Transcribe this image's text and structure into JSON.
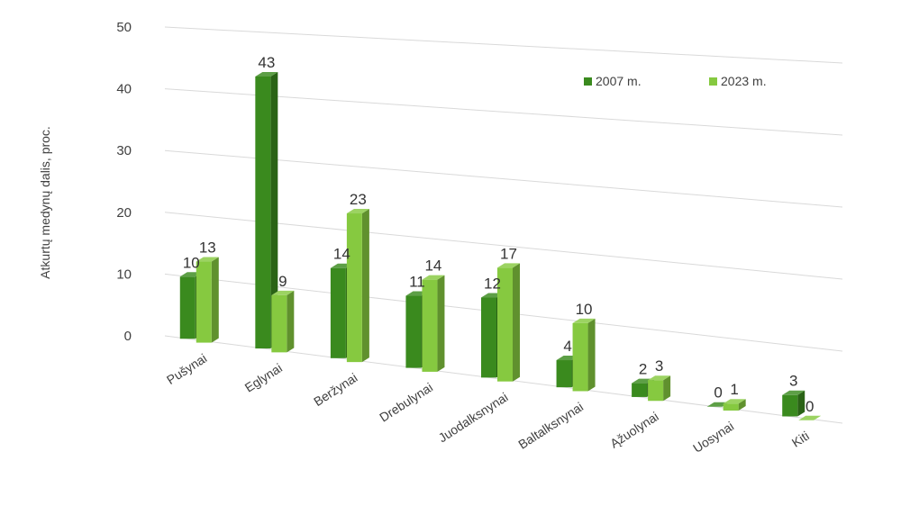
{
  "chart_data": {
    "type": "bar",
    "style": "3d-clustered-column",
    "ylabel": "Atkurtų medynų dalis, proc.",
    "xlabel": "",
    "ylim": [
      0,
      50
    ],
    "yticks": [
      0,
      10,
      20,
      30,
      40,
      50
    ],
    "grid": true,
    "legend_position": "top-right",
    "categories": [
      "Pušynai",
      "Eglynai",
      "Beržynai",
      "Drebulynai",
      "Juodalksnynai",
      "Baltalksnynai",
      "Ąžuolynai",
      "Uosynai",
      "Kiti"
    ],
    "series": [
      {
        "name": "2007 m.",
        "color": "#3a8a1e",
        "values": [
          10,
          43,
          14,
          11,
          12,
          4,
          2,
          0,
          3
        ]
      },
      {
        "name": "2023 m.",
        "color": "#86c940",
        "values": [
          13,
          9,
          23,
          14,
          17,
          10,
          3,
          1,
          0
        ]
      }
    ]
  }
}
